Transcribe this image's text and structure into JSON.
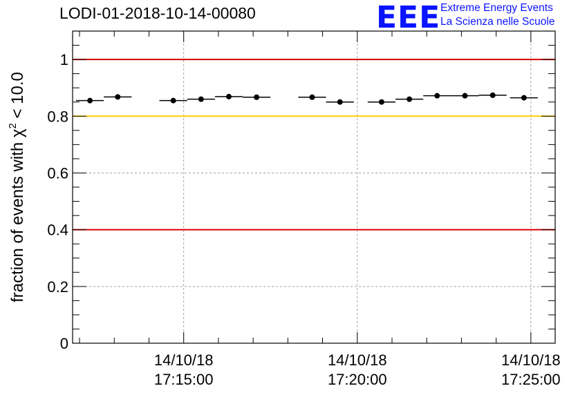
{
  "title": "LODI-01-2018-10-14-00080",
  "logo": {
    "mark": "EEE",
    "line1": "Extreme Energy Events",
    "line2": "La Scienza nelle Scuole"
  },
  "colors": {
    "threshold_red": "#e00000",
    "threshold_yellow": "#ffcc00",
    "logo_blue": "#0a14ff"
  },
  "chart_data": {
    "type": "scatter",
    "title": "LODI-01-2018-10-14-00080",
    "xlabel": "",
    "ylabel": "fraction of events with χ² < 10.0",
    "ylabel_parts": {
      "prefix": "fraction of events with χ",
      "sup": "2",
      "suffix": " < 10.0"
    },
    "x_unit": "minutes after 17:00:00 on 14/10/18",
    "xlim": [
      11.8,
      25.7
    ],
    "ylim": [
      0,
      1.1
    ],
    "yticks": [
      0,
      0.2,
      0.4,
      0.6,
      0.8,
      1
    ],
    "ytick_labels": [
      "0",
      "0.2",
      "0.4",
      "0.6",
      "0.8",
      "1"
    ],
    "xticks": [
      15,
      20,
      25
    ],
    "xtick_labels": [
      [
        "14/10/18",
        "17:15:00"
      ],
      [
        "14/10/18",
        "17:20:00"
      ],
      [
        "14/10/18",
        "17:25:00"
      ]
    ],
    "grid": true,
    "hlines": [
      {
        "y": 1.0,
        "color": "#e00000"
      },
      {
        "y": 0.8,
        "color": "#ffcc00"
      },
      {
        "y": 0.4,
        "color": "#e00000"
      }
    ],
    "bin_width_min": 0.8,
    "points": [
      {
        "x": 12.3,
        "y": 0.855
      },
      {
        "x": 13.1,
        "y": 0.868
      },
      {
        "x": 14.7,
        "y": 0.855
      },
      {
        "x": 15.5,
        "y": 0.86
      },
      {
        "x": 16.3,
        "y": 0.869
      },
      {
        "x": 17.1,
        "y": 0.867
      },
      {
        "x": 18.7,
        "y": 0.867
      },
      {
        "x": 19.5,
        "y": 0.85
      },
      {
        "x": 20.7,
        "y": 0.85
      },
      {
        "x": 21.5,
        "y": 0.86
      },
      {
        "x": 22.3,
        "y": 0.872
      },
      {
        "x": 23.1,
        "y": 0.872
      },
      {
        "x": 23.9,
        "y": 0.874
      },
      {
        "x": 24.8,
        "y": 0.865
      }
    ]
  }
}
